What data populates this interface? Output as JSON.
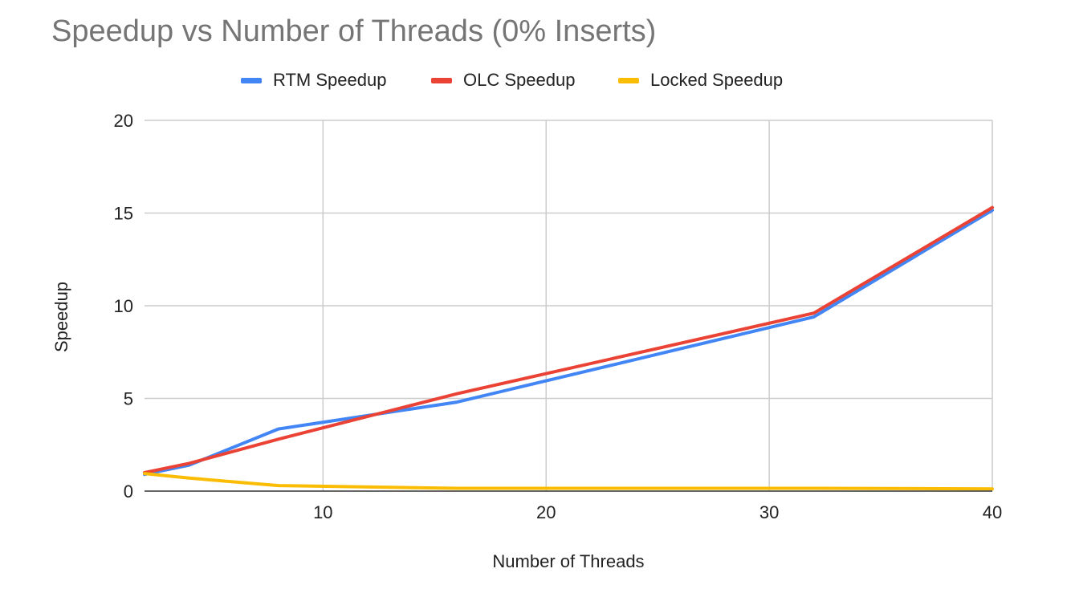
{
  "chart_data": {
    "type": "line",
    "title": "Speedup vs Number of Threads (0% Inserts)",
    "xlabel": "Number of Threads",
    "ylabel": "Speedup",
    "xlim": [
      2,
      40
    ],
    "ylim": [
      0,
      20
    ],
    "x_ticks": [
      10,
      20,
      30,
      40
    ],
    "y_ticks": [
      0,
      5,
      10,
      15,
      20
    ],
    "grid": true,
    "legend_position": "top",
    "series": [
      {
        "name": "RTM Speedup",
        "color": "#4285F4",
        "x": [
          2,
          4,
          8,
          16,
          32,
          40
        ],
        "y": [
          0.9,
          1.4,
          3.35,
          4.8,
          9.4,
          15.15
        ]
      },
      {
        "name": "OLC Speedup",
        "color": "#EA4335",
        "x": [
          2,
          4,
          8,
          16,
          32,
          40
        ],
        "y": [
          1.0,
          1.5,
          2.8,
          5.25,
          9.6,
          15.3
        ]
      },
      {
        "name": "Locked Speedup",
        "color": "#FBBC04",
        "x": [
          2,
          4,
          8,
          16,
          32,
          40
        ],
        "y": [
          0.95,
          0.7,
          0.3,
          0.15,
          0.15,
          0.12
        ]
      }
    ]
  }
}
